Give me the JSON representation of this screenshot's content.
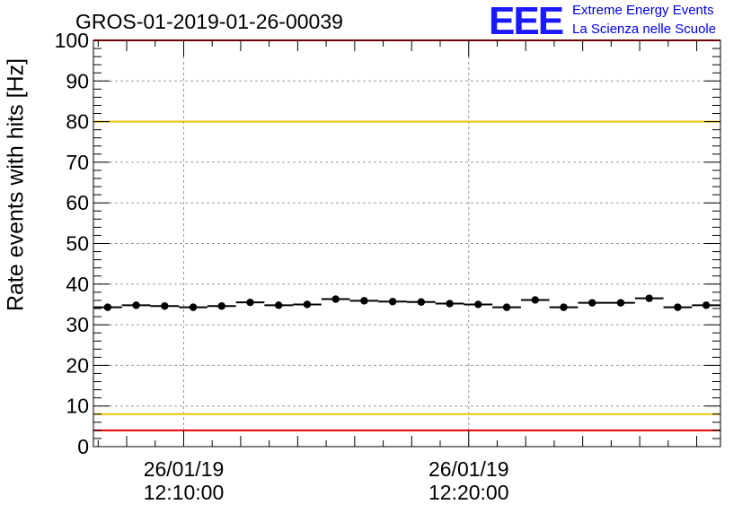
{
  "chart_data": {
    "type": "scatter",
    "title": "GROS-01-2019-01-26-00039",
    "ylabel": "Rate events with hits [Hz]",
    "xlabel": "",
    "ylim": [
      0,
      100
    ],
    "yticks": [
      0,
      10,
      20,
      30,
      40,
      50,
      60,
      70,
      80,
      90,
      100
    ],
    "xlim": [
      "26/01/19 12:06:50",
      "26/01/19 12:28:50"
    ],
    "xticks": [
      {
        "date": "26/01/19",
        "time": "12:10:00"
      },
      {
        "date": "26/01/19",
        "time": "12:20:00"
      }
    ],
    "grid": true,
    "bin_width_seconds": 60,
    "x": [
      "12:07:20",
      "12:08:20",
      "12:09:20",
      "12:10:20",
      "12:11:20",
      "12:12:20",
      "12:13:20",
      "12:14:20",
      "12:15:20",
      "12:16:20",
      "12:17:20",
      "12:18:20",
      "12:19:20",
      "12:20:20",
      "12:21:20",
      "12:22:20",
      "12:23:20",
      "12:24:20",
      "12:25:20",
      "12:26:20",
      "12:27:20",
      "12:28:20"
    ],
    "series": [
      {
        "values": [
          34.3,
          34.8,
          34.6,
          34.3,
          34.6,
          35.5,
          34.8,
          35.0,
          36.3,
          35.9,
          35.7,
          35.6,
          35.2,
          35.0,
          34.3,
          36.1,
          34.3,
          35.4,
          35.4,
          36.5,
          34.3,
          34.8
        ],
        "color": "#000000"
      }
    ],
    "reference_lines": [
      {
        "y": 100,
        "color": "#e60000"
      },
      {
        "y": 80,
        "color": "#f2c500"
      },
      {
        "y": 8,
        "color": "#f2c500"
      },
      {
        "y": 4,
        "color": "#e60000"
      }
    ]
  },
  "logo": {
    "mark": "EEE",
    "line1": "Extreme Energy Events",
    "line2": "La Scienza nelle Scuole",
    "color": "#1a1aff"
  }
}
